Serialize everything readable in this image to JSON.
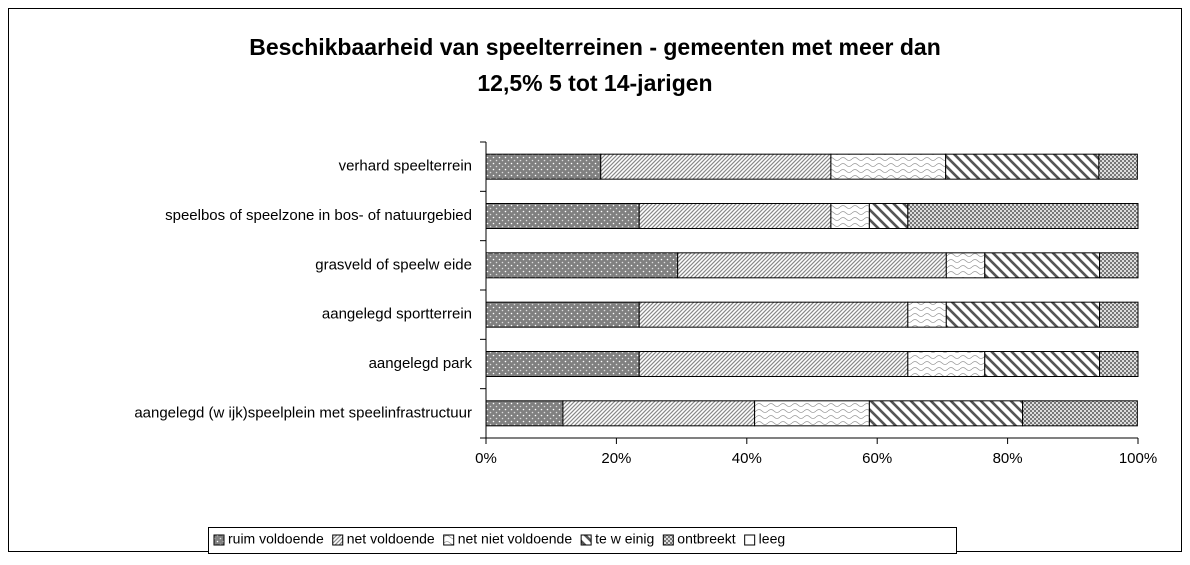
{
  "chart_data": {
    "type": "stacked-barh",
    "title": [
      "Beschikbaarheid van speelterreinen - gemeenten met meer dan",
      "12,5%  5 tot 14-jarigen"
    ],
    "categories": [
      "verhard speelterrein",
      "speelbos of speelzone in bos- of natuurgebied",
      "grasveld of speelw eide",
      "aangelegd sportterrein",
      "aangelegd park",
      "aangelegd (w ijk)speelplein met speelinfrastructuur"
    ],
    "series": [
      {
        "name": "ruim voldoende",
        "color": "#808080",
        "pattern": "dots",
        "values": [
          17.6,
          23.5,
          29.4,
          23.5,
          23.5,
          11.8
        ]
      },
      {
        "name": "net voldoende",
        "color": "#a0a0a0",
        "pattern": "hatch",
        "values": [
          35.3,
          29.4,
          41.2,
          41.2,
          41.2,
          29.4
        ]
      },
      {
        "name": "net niet voldoende",
        "color": "#a0a0a0",
        "pattern": "wave",
        "values": [
          17.6,
          5.9,
          5.9,
          5.9,
          11.8,
          17.6
        ]
      },
      {
        "name": "te w einig",
        "color": "#606060",
        "pattern": "bold-hatch",
        "values": [
          23.5,
          5.9,
          17.6,
          23.5,
          17.6,
          23.5
        ]
      },
      {
        "name": "ontbreekt",
        "color": "#808080",
        "pattern": "checker",
        "values": [
          5.9,
          35.3,
          5.9,
          5.9,
          5.9,
          17.6
        ]
      },
      {
        "name": "leeg",
        "color": "#ffffff",
        "pattern": "none",
        "values": [
          0,
          0,
          0,
          0,
          0,
          0
        ]
      }
    ],
    "xlim": [
      0,
      100
    ],
    "xticks": [
      {
        "value": 0,
        "label": "0%"
      },
      {
        "value": 20,
        "label": "20%"
      },
      {
        "value": 40,
        "label": "40%"
      },
      {
        "value": 60,
        "label": "60%"
      },
      {
        "value": 80,
        "label": "80%"
      },
      {
        "value": 100,
        "label": "100%"
      }
    ],
    "legend": "bottom"
  }
}
